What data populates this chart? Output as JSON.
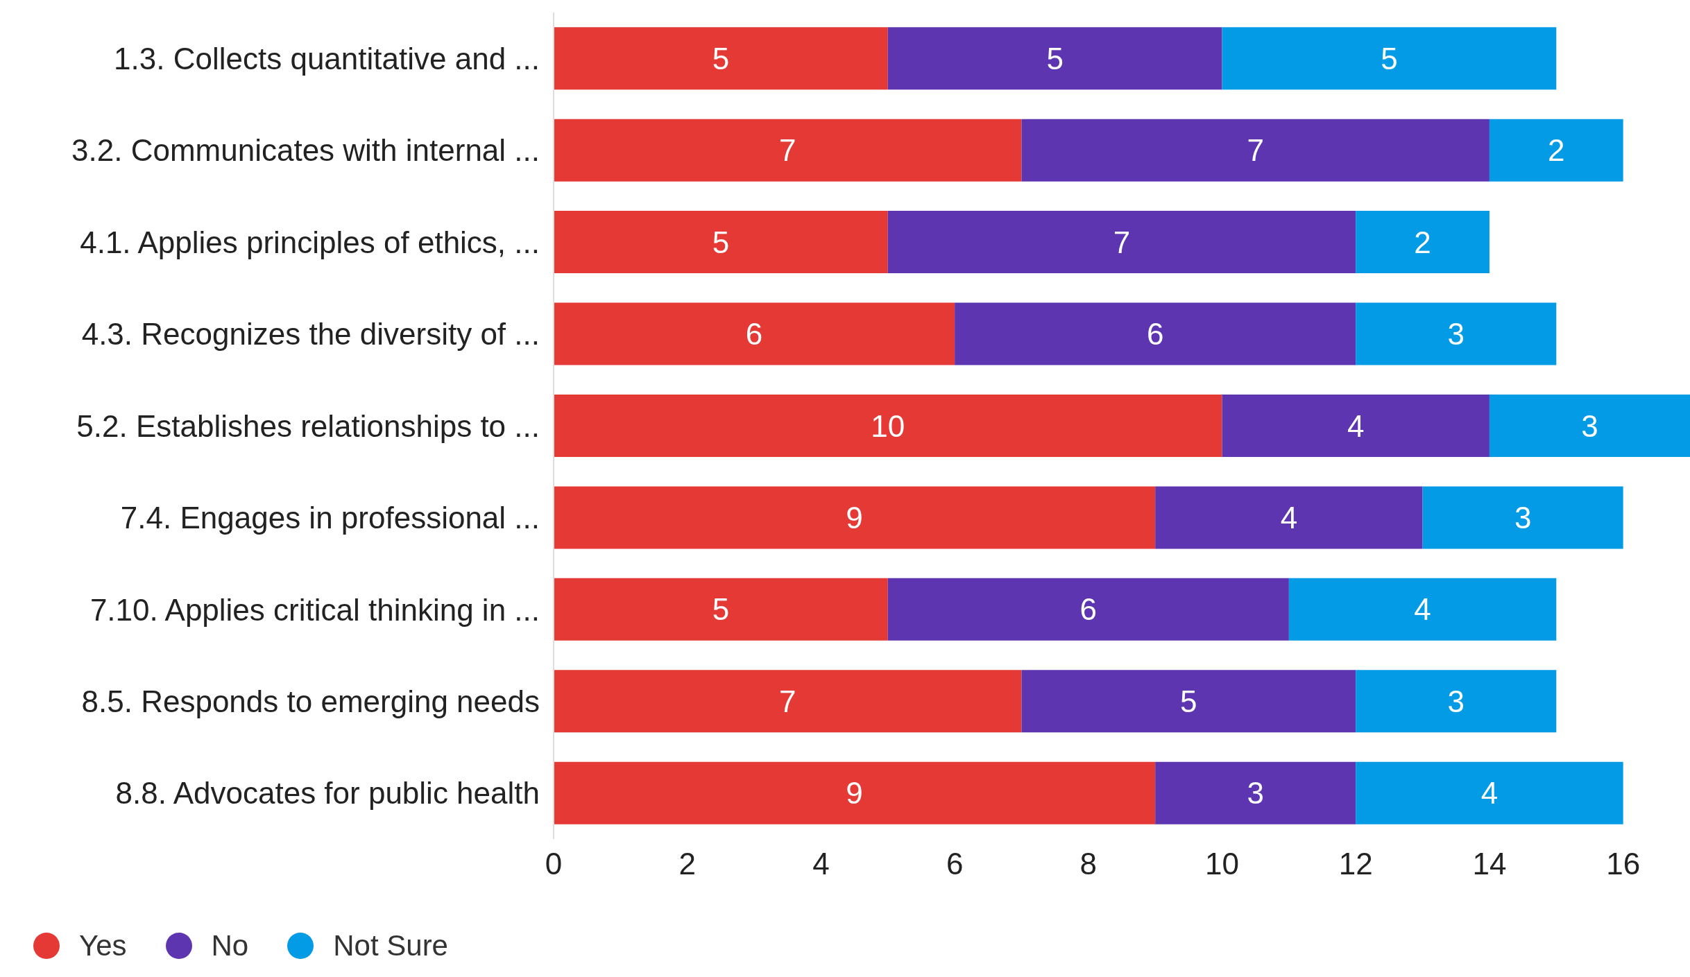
{
  "chart_data": {
    "type": "bar",
    "orientation": "horizontal",
    "stacked": true,
    "data_labels": true,
    "legend": "bottom left",
    "categories": [
      "1.3. Collects quantitative and ...",
      "3.2. Communicates with internal ...",
      "4.1. Applies principles of ethics, ...",
      "4.3. Recognizes the diversity of ...",
      "5.2. Establishes relationships to ...",
      "7.4. Engages in professional ...",
      "7.10. Applies critical thinking in ...",
      "8.5. Responds to emerging needs",
      "8.8. Advocates for public health"
    ],
    "series": [
      {
        "name": "Yes",
        "color": "#e53935",
        "values": [
          5,
          7,
          5,
          6,
          10,
          9,
          5,
          7,
          9
        ]
      },
      {
        "name": "No",
        "color": "#5e35b1",
        "values": [
          5,
          7,
          7,
          6,
          4,
          4,
          6,
          5,
          3
        ]
      },
      {
        "name": "Not Sure",
        "color": "#039be5",
        "values": [
          5,
          2,
          2,
          3,
          3,
          3,
          4,
          3,
          4
        ]
      }
    ],
    "xlim": [
      0,
      17
    ],
    "xticks": [
      0,
      2,
      4,
      6,
      8,
      10,
      12,
      14,
      16
    ]
  }
}
